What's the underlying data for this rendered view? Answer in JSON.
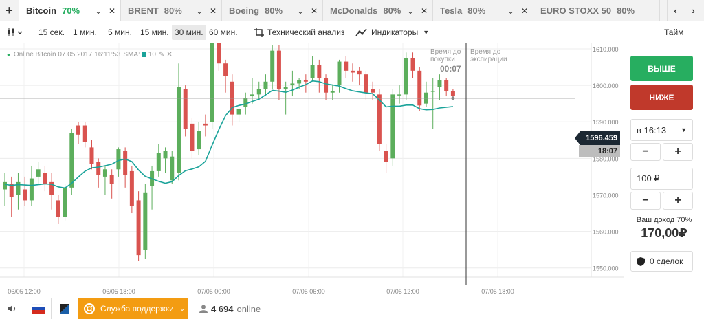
{
  "tabs": [
    {
      "name": "Bitcoin",
      "percent": "70%"
    },
    {
      "name": "BRENT",
      "percent": "80%"
    },
    {
      "name": "Boeing",
      "percent": "80%"
    },
    {
      "name": "McDonalds",
      "percent": "80%"
    },
    {
      "name": "Tesla",
      "percent": "80%"
    },
    {
      "name": "EURO STOXX 50",
      "percent": "80%"
    }
  ],
  "icons": {
    "add_tab": "+",
    "nav_prev": "‹",
    "nav_next": "›",
    "chevron": "⌄",
    "close": "✕",
    "sound": "🔈",
    "user": "👤",
    "shield": "🛡",
    "life_ring": "⊕"
  },
  "toolbar": {
    "timeframes": [
      "15 сек.",
      "1 мин.",
      "5 мин.",
      "15 мин.",
      "30 мин.",
      "60 мин."
    ],
    "selected_timeframe": "30 мин.",
    "tech_analysis": "Технический анализ",
    "indicators": "Индикаторы",
    "mode": "Тайм"
  },
  "chart_info": {
    "online_label": "Online Bitcoin 07.05.2017 16:11:53",
    "sma_label": "SMA:",
    "sma_value": "10"
  },
  "timers": {
    "purchase_label_1": "Время до",
    "purchase_label_2": "покупки",
    "purchase_time": "00:07",
    "expiry_label_1": "Время до",
    "expiry_label_2": "экспирации"
  },
  "current_price": "1596.459",
  "expiry_clock": "18:07",
  "side": {
    "up_label": "ВЫШЕ",
    "down_label": "НИЖЕ",
    "time_value": "в 16:13",
    "minus": "−",
    "plus": "+",
    "amount_value": "100 ₽",
    "income_label": "Ваш доход 70%",
    "income_value": "170,00₽",
    "deals_label": "0 сделок"
  },
  "bottom": {
    "support_label": "Служба поддержки",
    "online_count": "4 694",
    "online_label": "online"
  },
  "colors": {
    "up": "#27ae60",
    "down": "#c0392b",
    "sma": "#1aa39a",
    "candle_up": "#5cae5c",
    "candle_down": "#d9534f"
  },
  "chart_data": {
    "type": "candlestick",
    "y_ticks": [
      "1610.000",
      "1600.000",
      "1590.000",
      "1580.000",
      "1570.000",
      "1560.000",
      "1550.000"
    ],
    "x_ticks": [
      "06/05 12:00",
      "06/05 18:00",
      "07/05 00:00",
      "07/05 06:00",
      "07/05 12:00",
      "07/05 18:00"
    ],
    "ylim": [
      1547.5,
      1611.5
    ],
    "candles": [
      [
        1571.5,
        1573.5,
        1567,
        1576
      ],
      [
        1573,
        1569.5,
        1564,
        1575
      ],
      [
        1570,
        1573.5,
        1566,
        1576
      ],
      [
        1571.5,
        1568.5,
        1567,
        1575
      ],
      [
        1568.5,
        1574.5,
        1567,
        1578
      ],
      [
        1575,
        1577,
        1573,
        1579
      ],
      [
        1576,
        1573,
        1571,
        1578
      ],
      [
        1573.5,
        1570,
        1566,
        1576
      ],
      [
        1568.5,
        1564,
        1562,
        1570
      ],
      [
        1564,
        1572,
        1563,
        1573
      ],
      [
        1572,
        1587,
        1570,
        1588
      ],
      [
        1589,
        1586.5,
        1584,
        1590
      ],
      [
        1589,
        1584.5,
        1583,
        1590
      ],
      [
        1583,
        1578.5,
        1577,
        1585
      ],
      [
        1579,
        1575.5,
        1572,
        1580
      ],
      [
        1575,
        1577,
        1570,
        1578
      ],
      [
        1575.5,
        1573,
        1569,
        1577
      ],
      [
        1577,
        1582.5,
        1575,
        1583
      ],
      [
        1582,
        1575.5,
        1572,
        1583
      ],
      [
        1576.5,
        1567,
        1565,
        1578
      ],
      [
        1568.5,
        1553.5,
        1552,
        1571
      ],
      [
        1555,
        1570.5,
        1552.5,
        1573
      ],
      [
        1572.5,
        1576.5,
        1566,
        1578
      ],
      [
        1576.5,
        1581.5,
        1575,
        1584
      ],
      [
        1580,
        1582,
        1576,
        1583
      ],
      [
        1574,
        1580.5,
        1573,
        1582
      ],
      [
        1576,
        1599.5,
        1574,
        1606
      ],
      [
        1599,
        1588,
        1586,
        1600
      ],
      [
        1589.5,
        1582,
        1580,
        1591
      ],
      [
        1582.5,
        1587.5,
        1581,
        1590
      ],
      [
        1589.5,
        1589,
        1586,
        1592
      ],
      [
        1590,
        1615,
        1588,
        1617
      ],
      [
        1613,
        1606,
        1604,
        1615
      ],
      [
        1606,
        1602.5,
        1598,
        1607
      ],
      [
        1601,
        1592,
        1589,
        1603
      ],
      [
        1592,
        1593.5,
        1590,
        1595
      ],
      [
        1594,
        1596.5,
        1592,
        1598
      ],
      [
        1597,
        1597.5,
        1595,
        1602
      ],
      [
        1597.5,
        1599,
        1596,
        1601
      ],
      [
        1599,
        1601,
        1597,
        1603
      ],
      [
        1601,
        1609.5,
        1599,
        1611
      ],
      [
        1609.5,
        1599,
        1596,
        1611
      ],
      [
        1599,
        1599.5,
        1592,
        1601
      ],
      [
        1600,
        1600.5,
        1597,
        1604
      ],
      [
        1600.5,
        1601.5,
        1599,
        1602
      ],
      [
        1601.5,
        1601,
        1598,
        1603
      ],
      [
        1602,
        1605.5,
        1601,
        1608
      ],
      [
        1605.5,
        1602,
        1598,
        1607
      ],
      [
        1602,
        1598,
        1596,
        1603
      ],
      [
        1598,
        1598.5,
        1596,
        1600
      ],
      [
        1600,
        1606.5,
        1598,
        1607
      ],
      [
        1606.5,
        1604,
        1602,
        1608
      ],
      [
        1604,
        1603.5,
        1601,
        1606
      ],
      [
        1604,
        1603,
        1600,
        1605
      ],
      [
        1603,
        1598,
        1596,
        1604
      ],
      [
        1599,
        1598,
        1596,
        1601
      ],
      [
        1597.5,
        1584,
        1582,
        1599
      ],
      [
        1582,
        1579,
        1576,
        1584
      ],
      [
        1580,
        1597.5,
        1578,
        1599
      ],
      [
        1597.5,
        1597.5,
        1595,
        1600
      ],
      [
        1597.5,
        1607.5,
        1596,
        1609
      ],
      [
        1607.5,
        1604,
        1602,
        1609
      ],
      [
        1604,
        1594.5,
        1593,
        1605
      ],
      [
        1595,
        1598,
        1594,
        1601
      ],
      [
        1598.5,
        1598.5,
        1588,
        1602
      ],
      [
        1599.5,
        1601.5,
        1596,
        1603
      ],
      [
        1601.5,
        1598.5,
        1597,
        1602
      ],
      [
        1598.5,
        1597,
        1596,
        1599
      ]
    ],
    "sma": [
      1572.9,
      1572.6,
      1572.8,
      1572.7,
      1572.6,
      1572.8,
      1573.0,
      1572.9,
      1572.2,
      1571.9,
      1573.2,
      1574.9,
      1576.5,
      1577.4,
      1577.6,
      1578.0,
      1578.4,
      1579.4,
      1579.8,
      1579.1,
      1576.8,
      1575.1,
      1574.4,
      1573.7,
      1573.2,
      1573.6,
      1575.3,
      1576.6,
      1577.1,
      1577.7,
      1579.2,
      1583.6,
      1587.9,
      1591.7,
      1593.9,
      1594.5,
      1594.9,
      1595.6,
      1596.2,
      1597.4,
      1598.6,
      1598.4,
      1598.1,
      1598.7,
      1599.5,
      1600.2,
      1601.2,
      1601.0,
      1600.4,
      1600.1,
      1599.8,
      1599.1,
      1598.5,
      1598.2,
      1597.9,
      1597.7,
      1596.0,
      1594.1,
      1594.3,
      1594.3,
      1594.6,
      1594.6,
      1593.6,
      1593.3,
      1593.4,
      1593.8,
      1594.0,
      1594.2
    ]
  }
}
